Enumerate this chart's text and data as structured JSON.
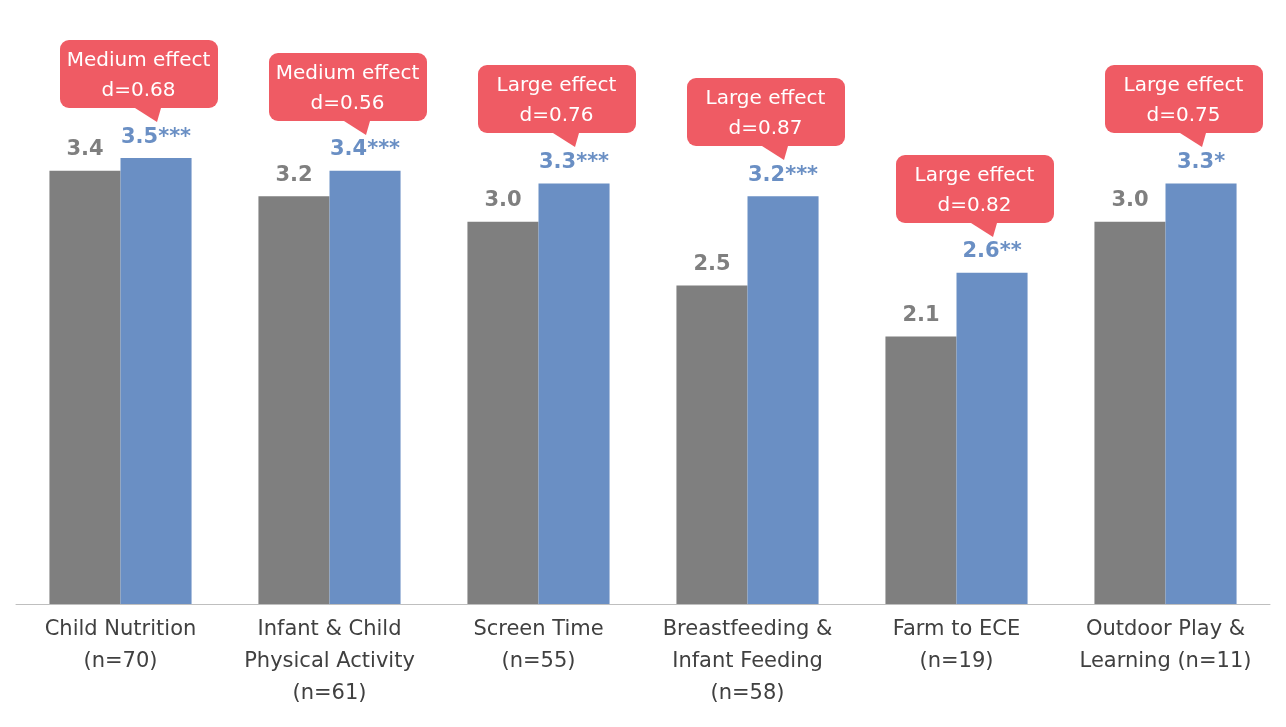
{
  "chart_data": {
    "type": "bar",
    "categories": [
      "Child Nutrition\n(n=70)",
      "Infant & Child\nPhysical Activity\n(n=61)",
      "Screen Time\n(n=55)",
      "Breastfeeding &\nInfant Feeding\n(n=58)",
      "Farm to ECE\n(n=19)",
      "Outdoor Play &\nLearning (n=11)"
    ],
    "series": [
      {
        "color": "#7f7f7f",
        "values": [
          3.4,
          3.2,
          3.0,
          2.5,
          2.1,
          3.0
        ],
        "value_labels": [
          "3.4",
          "3.2",
          "3.0",
          "2.5",
          "2.1",
          "3.0"
        ]
      },
      {
        "color": "#6a8fc4",
        "values": [
          3.5,
          3.4,
          3.3,
          3.2,
          2.6,
          3.3
        ],
        "value_labels": [
          "3.5***",
          "3.4***",
          "3.3***",
          "3.2***",
          "2.6**",
          "3.3*"
        ]
      }
    ],
    "annotations": [
      {
        "text": "Medium effect d=0.68",
        "x": "Child Nutrition\n(n=70)",
        "y": 3.5
      },
      {
        "text": "Medium effect d=0.56",
        "x": "Infant & Child\nPhysical Activity\n(n=61)",
        "y": 3.4
      },
      {
        "text": "Large effect d=0.76",
        "x": "Screen Time\n(n=55)",
        "y": 3.3
      },
      {
        "text": "Large effect d=0.87",
        "x": "Breastfeeding &\nInfant Feeding\n(n=58)",
        "y": 3.2
      },
      {
        "text": "Large effect d=0.82",
        "x": "Farm to ECE\n(n=19)",
        "y": 2.6
      },
      {
        "text": "Large effect d=0.75",
        "x": "Outdoor Play &\nLearning (n=11)",
        "y": 3.3
      }
    ],
    "stacked": false
  }
}
